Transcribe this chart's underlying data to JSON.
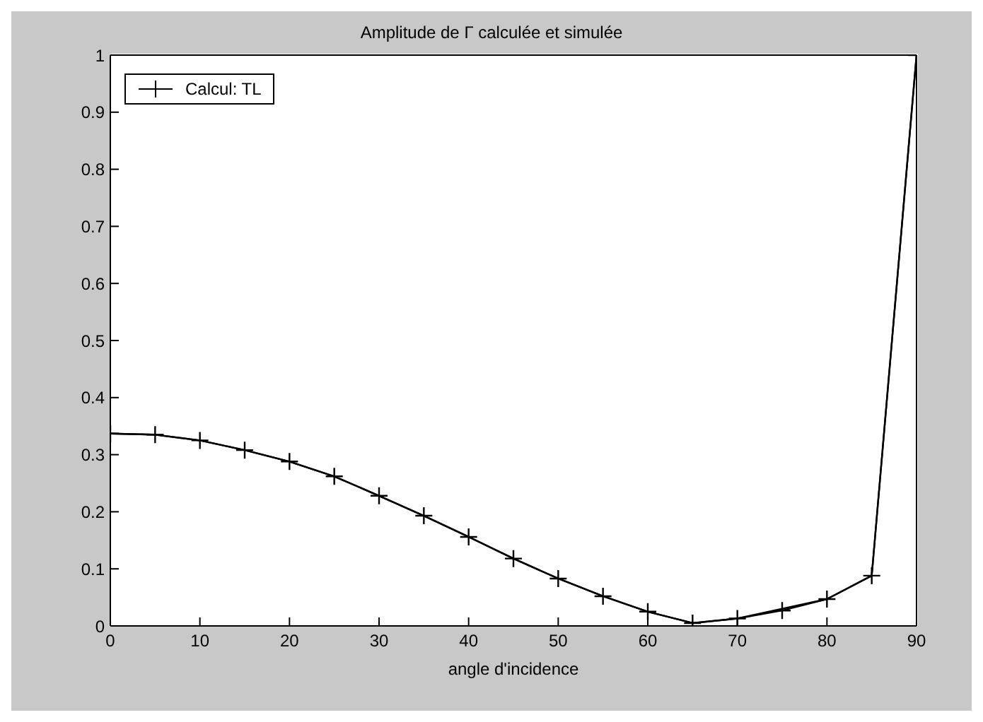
{
  "chart_data": {
    "type": "line",
    "title": "Amplitude de Γ calculée et simulée",
    "xlabel": "angle d'incidence",
    "x": [
      0,
      5,
      10,
      15,
      20,
      25,
      30,
      35,
      40,
      45,
      50,
      55,
      60,
      65,
      70,
      75,
      80,
      85,
      90
    ],
    "series": [
      {
        "name": "Calcul: TL",
        "color": "#000000",
        "marker": "cross",
        "values": [
          0.337,
          0.335,
          0.325,
          0.308,
          0.288,
          0.262,
          0.228,
          0.193,
          0.156,
          0.118,
          0.083,
          0.052,
          0.025,
          0.005,
          0.013,
          0.027,
          0.047,
          0.088,
          1.0
        ]
      },
      {
        "color": "#000000",
        "marker": "none",
        "values": [
          0.337,
          0.335,
          0.325,
          0.308,
          0.288,
          0.262,
          0.228,
          0.193,
          0.156,
          0.118,
          0.083,
          0.052,
          0.025,
          0.005,
          0.013,
          0.03,
          0.047,
          0.088,
          1.0
        ]
      }
    ],
    "xlim": [
      0,
      90
    ],
    "xticks": [
      0,
      10,
      20,
      30,
      40,
      50,
      60,
      70,
      80,
      90
    ],
    "ylim": [
      0,
      1
    ],
    "yticks": [
      0,
      0.1,
      0.2,
      0.3,
      0.4,
      0.5,
      0.6,
      0.7,
      0.8,
      0.9,
      1
    ],
    "legend": "top left",
    "line_style": "solid"
  }
}
